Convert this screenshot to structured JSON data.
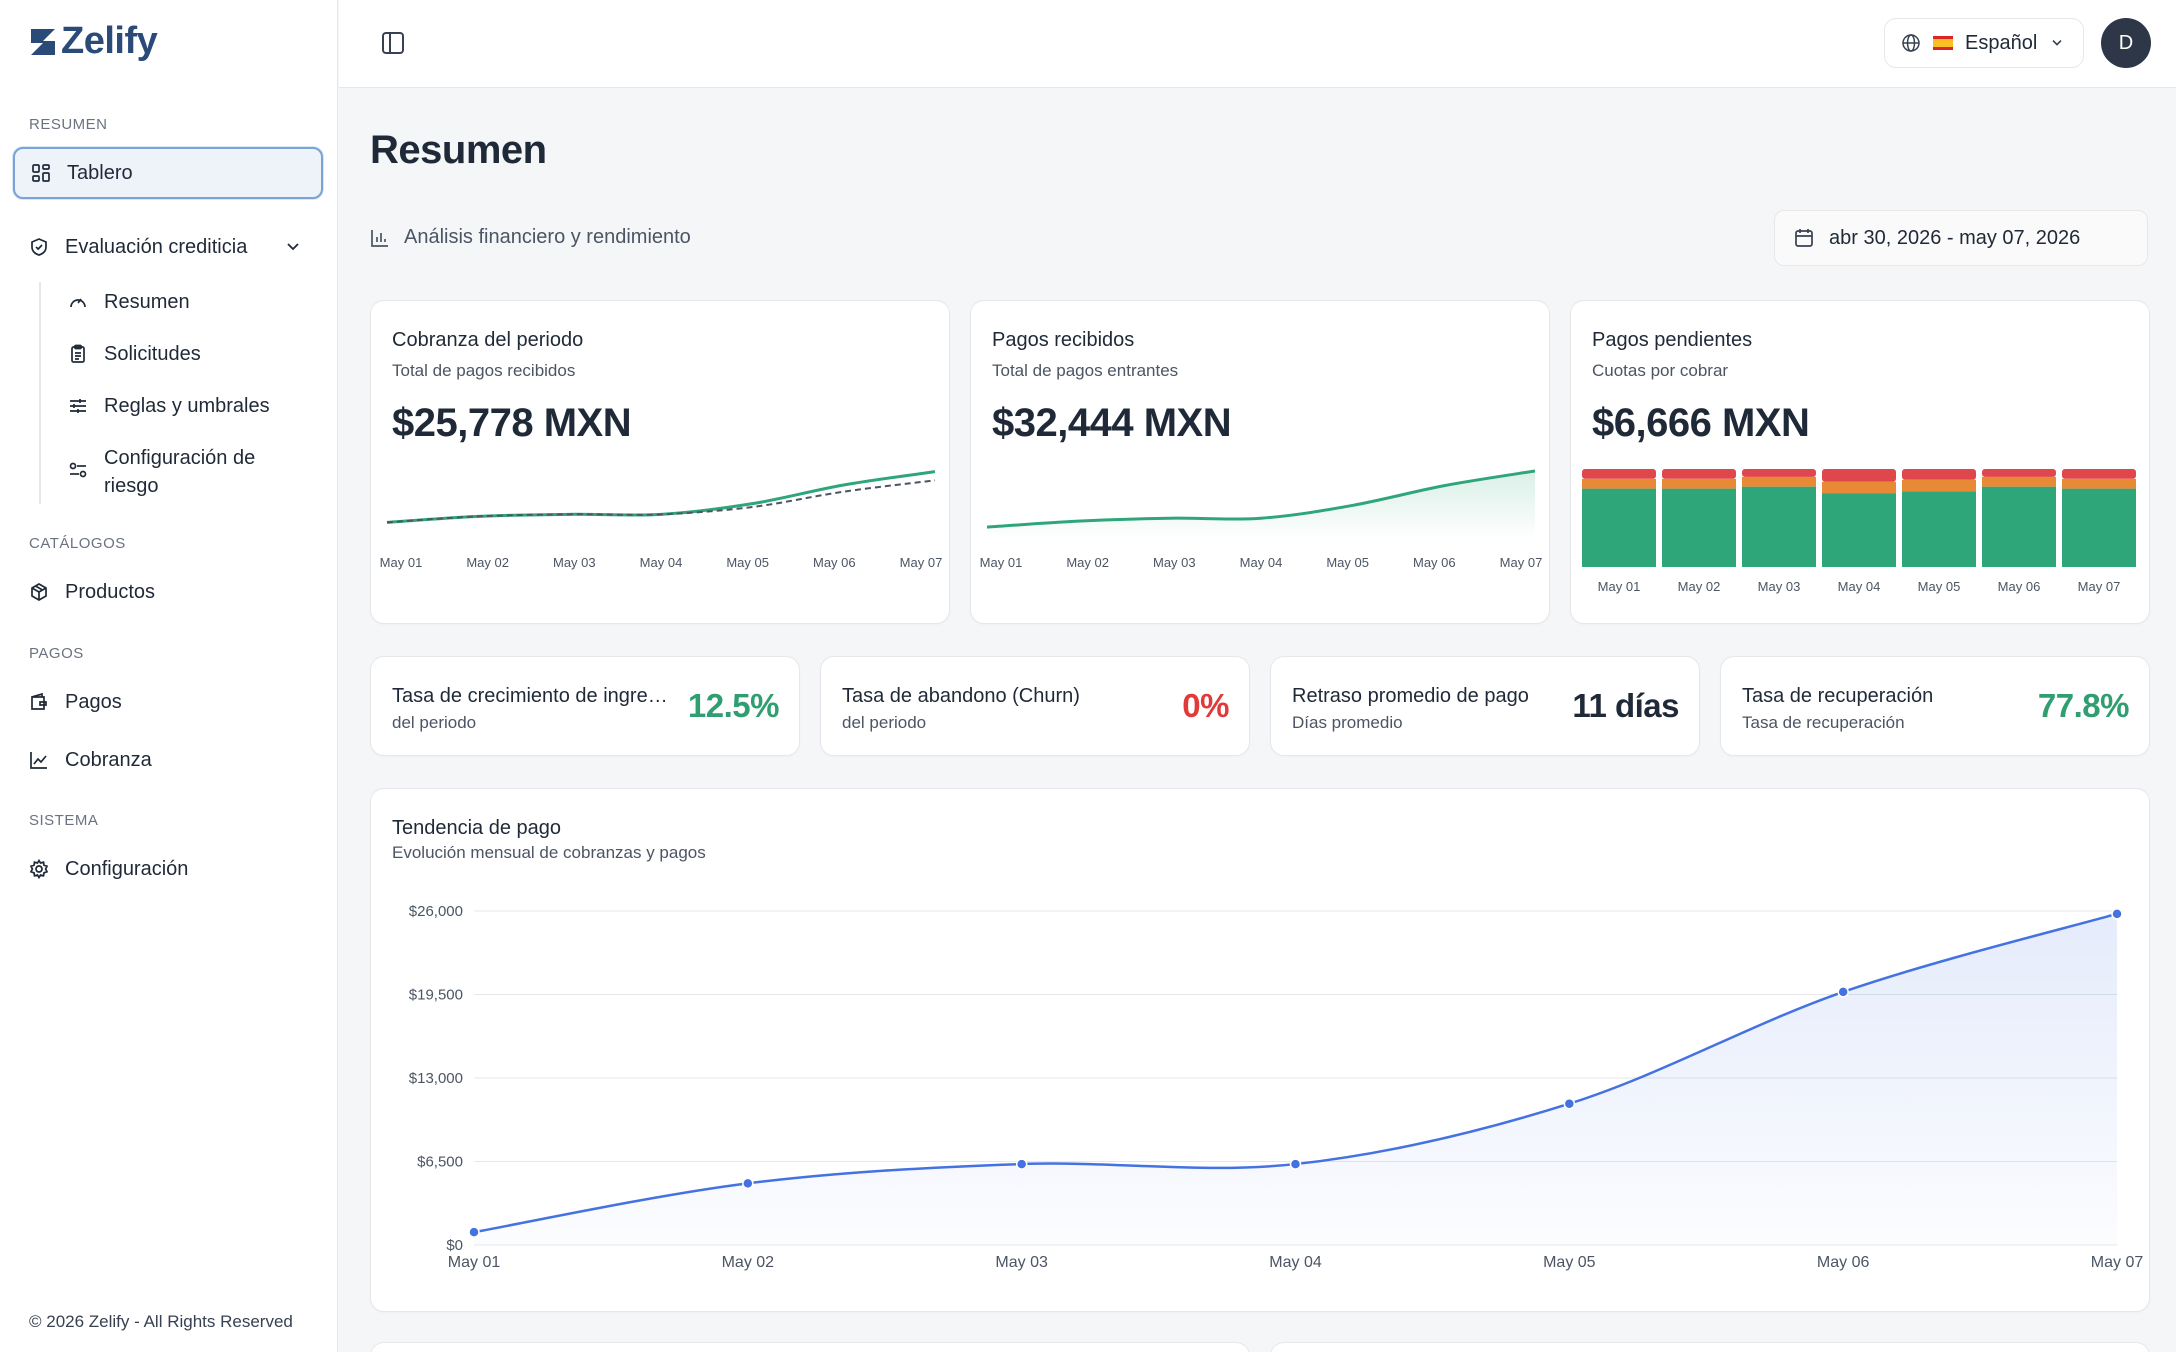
{
  "app": {
    "name": "Zelify",
    "footer": "© 2026 Zelify - All Rights Reserved"
  },
  "sidebar": {
    "sections": [
      {
        "label": "RESUMEN"
      },
      {
        "label": "CATÁLOGOS"
      },
      {
        "label": "PAGOS"
      },
      {
        "label": "SISTEMA"
      }
    ],
    "items": {
      "tablero": "Tablero",
      "evaluacion": "Evaluación crediticia",
      "resumen": "Resumen",
      "solicitudes": "Solicitudes",
      "reglas": "Reglas y umbrales",
      "config_riesgo": "Configuración de riesgo",
      "productos": "Productos",
      "pagos": "Pagos",
      "cobranza": "Cobranza",
      "configuracion": "Configuración"
    }
  },
  "topbar": {
    "language": "Español",
    "avatar_initial": "D"
  },
  "main": {
    "title": "Resumen",
    "subtitle": "Análisis financiero y rendimiento",
    "date_range": "abr 30, 2026 - may 07, 2026"
  },
  "cards": [
    {
      "title": "Cobranza del periodo",
      "subtitle": "Total de pagos recibidos",
      "value": "$25,778 MXN"
    },
    {
      "title": "Pagos recibidos",
      "subtitle": "Total de pagos entrantes",
      "value": "$32,444 MXN"
    },
    {
      "title": "Pagos pendientes",
      "subtitle": "Cuotas por cobrar",
      "value": "$6,666 MXN"
    }
  ],
  "kpis": [
    {
      "title": "Tasa de crecimiento de ingres...",
      "subtitle": "del periodo",
      "value": "12.5%",
      "color": "#2f9e70"
    },
    {
      "title": "Tasa de abandono (Churn)",
      "subtitle": "del periodo",
      "value": "0%",
      "color": "#e03b3b"
    },
    {
      "title": "Retraso promedio de pago",
      "subtitle": "Días promedio",
      "value": "11 días",
      "color": "#1f2937"
    },
    {
      "title": "Tasa de recuperación",
      "subtitle": "Tasa de recuperación",
      "value": "77.8%",
      "color": "#2f9e70"
    }
  ],
  "trend": {
    "title": "Tendencia de pago",
    "subtitle": "Evolución mensual de cobranzas y pagos"
  },
  "colors": {
    "green": "#2fa67a",
    "orange": "#e88a35",
    "red": "#e0474c",
    "blue": "#4472e0"
  },
  "chart_data": [
    {
      "type": "line",
      "x": [
        "May 01",
        "May 02",
        "May 03",
        "May 04",
        "May 05",
        "May 06",
        "May 07"
      ],
      "series": [
        {
          "values": [
            1000,
            1900,
            2200,
            2200,
            3800,
            6600,
            8600
          ],
          "style": "solid",
          "color": "#2fa67a"
        },
        {
          "values": [
            1000,
            1900,
            2200,
            2200,
            3300,
            5600,
            7300
          ],
          "style": "dashed",
          "color": "#4b5563"
        }
      ],
      "ylim": [
        0,
        9000
      ]
    },
    {
      "type": "area",
      "x": [
        "May 01",
        "May 02",
        "May 03",
        "May 04",
        "May 05",
        "May 06",
        "May 07"
      ],
      "series": [
        {
          "values": [
            1200,
            2400,
            3000,
            3000,
            5600,
            9600,
            12600
          ],
          "color": "#2fa67a"
        }
      ],
      "ylim": [
        0,
        13000
      ]
    },
    {
      "type": "bar",
      "stacked": true,
      "categories": [
        "May 01",
        "May 02",
        "May 03",
        "May 04",
        "May 05",
        "May 06",
        "May 07"
      ],
      "series": [
        {
          "values": [
            80,
            80,
            82,
            75,
            77,
            82,
            80
          ],
          "color": "#2fa67a"
        },
        {
          "values": [
            10,
            10,
            10,
            12,
            12,
            10,
            10
          ],
          "color": "#e88a35"
        },
        {
          "values": [
            10,
            10,
            8,
            13,
            11,
            8,
            10
          ],
          "color": "#e0474c"
        }
      ],
      "ylim": [
        0,
        100
      ]
    },
    {
      "type": "area",
      "title": "Tendencia de pago",
      "x": [
        "May 01",
        "May 02",
        "May 03",
        "May 04",
        "May 05",
        "May 06",
        "May 07"
      ],
      "series": [
        {
          "values": [
            1000,
            4800,
            6300,
            6300,
            11000,
            19700,
            25778
          ],
          "color": "#4472e0"
        }
      ],
      "yticks": [
        "$0",
        "$6,500",
        "$13,000",
        "$19,500",
        "$26,000"
      ],
      "ylim": [
        0,
        26000
      ],
      "grid": true
    }
  ]
}
